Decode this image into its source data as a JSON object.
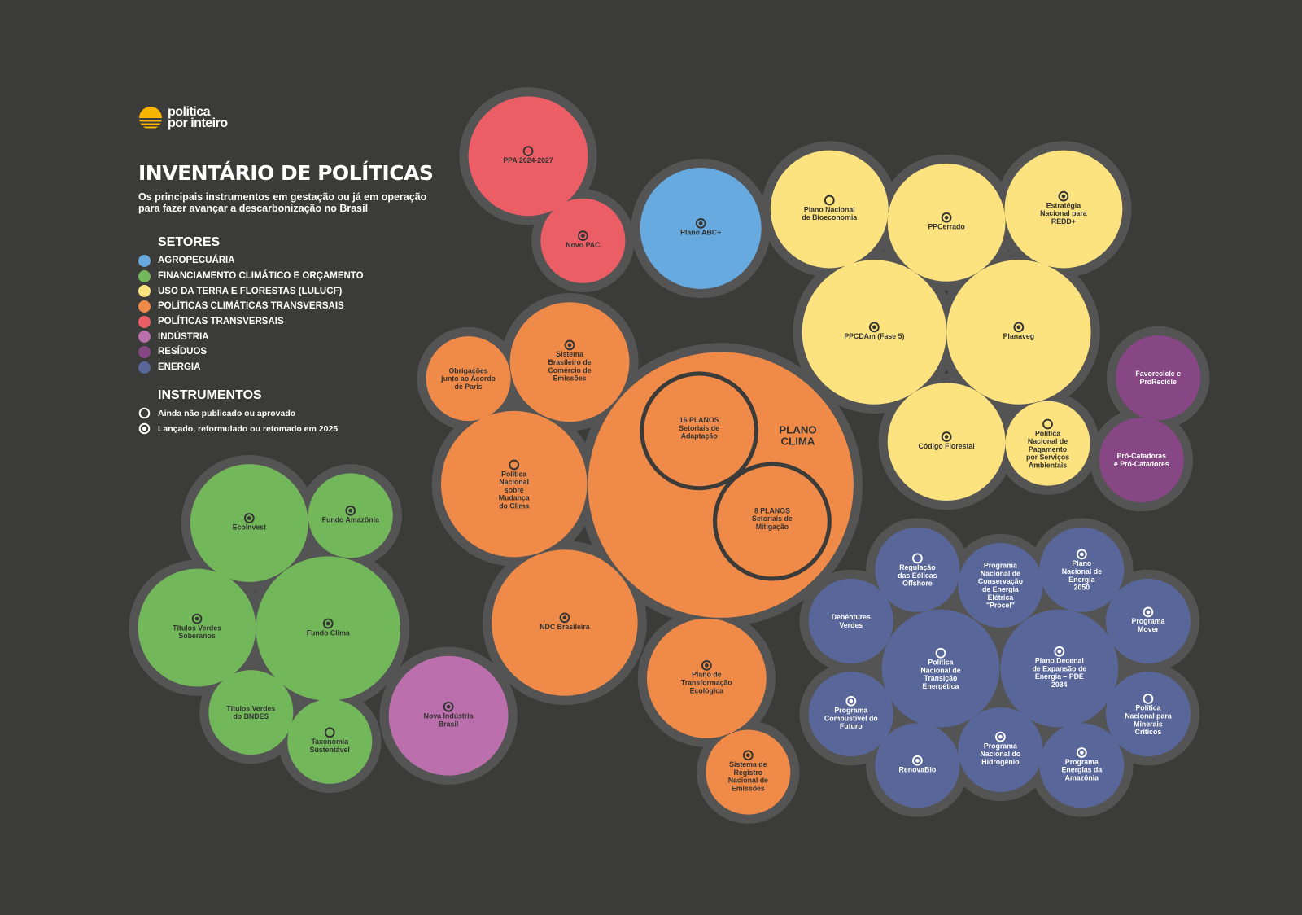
{
  "brand": {
    "line1": "politica",
    "line2": "por inteiro"
  },
  "title": "INVENTÁRIO DE POLÍTICAS",
  "subtitle": "Os principais instrumentos em gestação ou já em operação para fazer avançar a descarbonização no Brasil",
  "sectors_heading": "SETORES",
  "sectors": [
    {
      "key": "agro",
      "label": "AGROPECUÁRIA",
      "color": "#67aadf"
    },
    {
      "key": "fin",
      "label": "FINANCIAMENTO CLIMÁTICO E ORÇAMENTO",
      "color": "#72b85a"
    },
    {
      "key": "lulucf",
      "label": "USO DA TERRA E FLORESTAS (LULUCF)",
      "color": "#fde37f"
    },
    {
      "key": "clima",
      "label": "POLÍTICAS CLIMÁTICAS TRANSVERSAIS",
      "color": "#f08a48"
    },
    {
      "key": "transv",
      "label": "POLÍTICAS TRANSVERSAIS",
      "color": "#ec5e65"
    },
    {
      "key": "ind",
      "label": "INDÚSTRIA",
      "color": "#bb6fad"
    },
    {
      "key": "res",
      "label": "RESÍDUOS",
      "color": "#874785"
    },
    {
      "key": "energia",
      "label": "ENERGIA",
      "color": "#586699"
    }
  ],
  "instruments_heading": "INSTRUMENTOS",
  "instruments": [
    {
      "key": "ring",
      "label": "Ainda não publicado ou aprovado"
    },
    {
      "key": "target",
      "label": "Lançado, reformulado ou retomado em 2025"
    }
  ],
  "policies": [
    {
      "lines": [
        "PPA 2024-2027"
      ],
      "sector": "transv",
      "status": "ring"
    },
    {
      "lines": [
        "Novo PAC"
      ],
      "sector": "transv",
      "status": "target"
    },
    {
      "lines": [
        "Plano ABC+"
      ],
      "sector": "agro",
      "status": "target"
    },
    {
      "lines": [
        "Plano Nacional",
        "de Bioeconomia"
      ],
      "sector": "lulucf",
      "status": "ring"
    },
    {
      "lines": [
        "PPCerrado"
      ],
      "sector": "lulucf",
      "status": "target"
    },
    {
      "lines": [
        "Estratégia",
        "Nacional para",
        "REDD+"
      ],
      "sector": "lulucf",
      "status": "target"
    },
    {
      "lines": [
        "PPCDAm (Fase 5)"
      ],
      "sector": "lulucf",
      "status": "target"
    },
    {
      "lines": [
        "Planaveg"
      ],
      "sector": "lulucf",
      "status": "target"
    },
    {
      "lines": [
        "Código Florestal"
      ],
      "sector": "lulucf",
      "status": "target"
    },
    {
      "lines": [
        "Política",
        "Nacional de",
        "Pagamento",
        "por Serviços",
        "Ambientais"
      ],
      "sector": "lulucf",
      "status": "ring"
    },
    {
      "lines": [
        "Favorecicle e",
        "ProRecicle"
      ],
      "sector": "res",
      "status": "none"
    },
    {
      "lines": [
        "Pró-Catadoras",
        "e Pró-Catadores"
      ],
      "sector": "res",
      "status": "none"
    },
    {
      "lines": [
        "Obrigações",
        "junto ao Acordo",
        "de Paris"
      ],
      "sector": "clima",
      "status": "none"
    },
    {
      "lines": [
        "Sistema",
        "Brasileiro de",
        "Comércio de",
        "Emissões"
      ],
      "sector": "clima",
      "status": "target"
    },
    {
      "lines": [
        "Política",
        "Nacional",
        "sobre",
        "Mudança",
        "do Clima"
      ],
      "sector": "clima",
      "status": "ring"
    },
    {
      "lines": [
        "PLANO",
        "CLIMA"
      ],
      "sector": "clima",
      "status": "none",
      "big": true
    },
    {
      "lines": [
        "16 PLANOS",
        "Setoriais de",
        "Adaptação"
      ],
      "sector": "clima",
      "status": "none",
      "inner": true
    },
    {
      "lines": [
        "8 PLANOS",
        "Setoriais de",
        "Mitigação"
      ],
      "sector": "clima",
      "status": "none",
      "inner": true
    },
    {
      "lines": [
        "NDC Brasileira"
      ],
      "sector": "clima",
      "status": "target"
    },
    {
      "lines": [
        "Plano de",
        "Transformação",
        "Ecológica"
      ],
      "sector": "clima",
      "status": "target"
    },
    {
      "lines": [
        "Sistema de",
        "Registro",
        "Nacional de",
        "Emissões"
      ],
      "sector": "clima",
      "status": "target"
    },
    {
      "lines": [
        "Ecoinvest"
      ],
      "sector": "fin",
      "status": "target"
    },
    {
      "lines": [
        "Fundo Amazônia"
      ],
      "sector": "fin",
      "status": "target"
    },
    {
      "lines": [
        "Títulos Verdes",
        "Soberanos"
      ],
      "sector": "fin",
      "status": "target"
    },
    {
      "lines": [
        "Fundo Clima"
      ],
      "sector": "fin",
      "status": "target"
    },
    {
      "lines": [
        "Títulos Verdes",
        "do BNDES"
      ],
      "sector": "fin",
      "status": "none"
    },
    {
      "lines": [
        "Taxonomia",
        "Sustentável"
      ],
      "sector": "fin",
      "status": "ring"
    },
    {
      "lines": [
        "Nova Indústria",
        "Brasil"
      ],
      "sector": "ind",
      "status": "target"
    },
    {
      "lines": [
        "Regulação",
        "das Eólicas",
        "Offshore"
      ],
      "sector": "energia",
      "status": "ring"
    },
    {
      "lines": [
        "Programa",
        "Nacional de",
        "Conservação",
        "de Energia",
        "Elétrica",
        "\"Procel\""
      ],
      "sector": "energia",
      "status": "none"
    },
    {
      "lines": [
        "Plano",
        "Nacional de",
        "Energia",
        "2050"
      ],
      "sector": "energia",
      "status": "target"
    },
    {
      "lines": [
        "Debêntures",
        "Verdes"
      ],
      "sector": "energia",
      "status": "none"
    },
    {
      "lines": [
        "Programa",
        "Mover"
      ],
      "sector": "energia",
      "status": "target"
    },
    {
      "lines": [
        "Política",
        "Nacional de",
        "Transição",
        "Energética"
      ],
      "sector": "energia",
      "status": "ring"
    },
    {
      "lines": [
        "Plano Decenal",
        "de Expansão de",
        "Energia – PDE",
        "2034"
      ],
      "sector": "energia",
      "status": "target"
    },
    {
      "lines": [
        "Programa",
        "Combustível do",
        "Futuro"
      ],
      "sector": "energia",
      "status": "target"
    },
    {
      "lines": [
        "Política",
        "Nacional para",
        "Minerais",
        "Críticos"
      ],
      "sector": "energia",
      "status": "ring"
    },
    {
      "lines": [
        "RenovaBio"
      ],
      "sector": "energia",
      "status": "target"
    },
    {
      "lines": [
        "Programa",
        "Nacional do",
        "Hidrogênio"
      ],
      "sector": "energia",
      "status": "target"
    },
    {
      "lines": [
        "Programa",
        "Energias da",
        "Amazônia"
      ],
      "sector": "energia",
      "status": "target"
    }
  ]
}
